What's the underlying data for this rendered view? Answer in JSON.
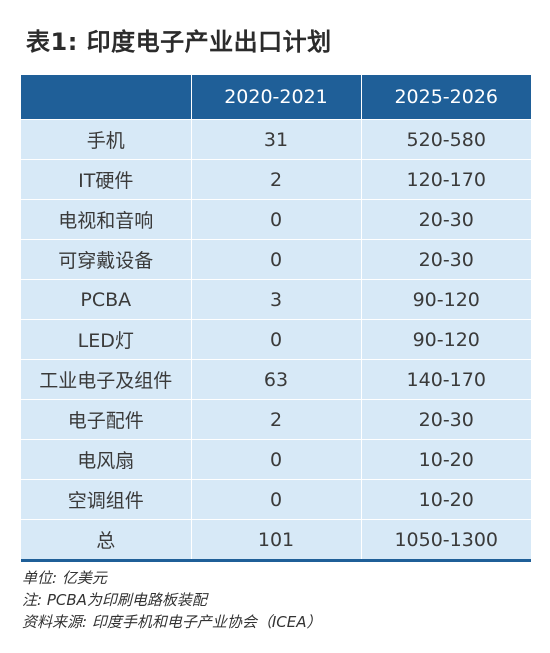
{
  "title": "表1: 印度电子产业出口计划",
  "table": {
    "headers": [
      "",
      "2020-2021",
      "2025-2026"
    ],
    "rows": [
      {
        "item": "手机",
        "y2021": "31",
        "y2026": "520-580"
      },
      {
        "item": "IT硬件",
        "y2021": "2",
        "y2026": "120-170"
      },
      {
        "item": "电视和音响",
        "y2021": "0",
        "y2026": "20-30"
      },
      {
        "item": "可穿戴设备",
        "y2021": "0",
        "y2026": "20-30"
      },
      {
        "item": "PCBA",
        "y2021": "3",
        "y2026": "90-120"
      },
      {
        "item": "LED灯",
        "y2021": "0",
        "y2026": "90-120"
      },
      {
        "item": "工业电子及组件",
        "y2021": "63",
        "y2026": "140-170"
      },
      {
        "item": "电子配件",
        "y2021": "2",
        "y2026": "20-30"
      },
      {
        "item": "电风扇",
        "y2021": "0",
        "y2026": "10-20"
      },
      {
        "item": "空调组件",
        "y2021": "0",
        "y2026": "10-20"
      },
      {
        "item": "总",
        "y2021": "101",
        "y2026": "1050-1300"
      }
    ]
  },
  "notes": {
    "unit": "单位: 亿美元",
    "note": "注: PCBA为印刷电路板装配",
    "source": "资料来源: 印度手机和电子产业协会（ICEA）"
  },
  "colors": {
    "header_bg": "#1f5f98",
    "row_bg": "#d7e9f7"
  }
}
